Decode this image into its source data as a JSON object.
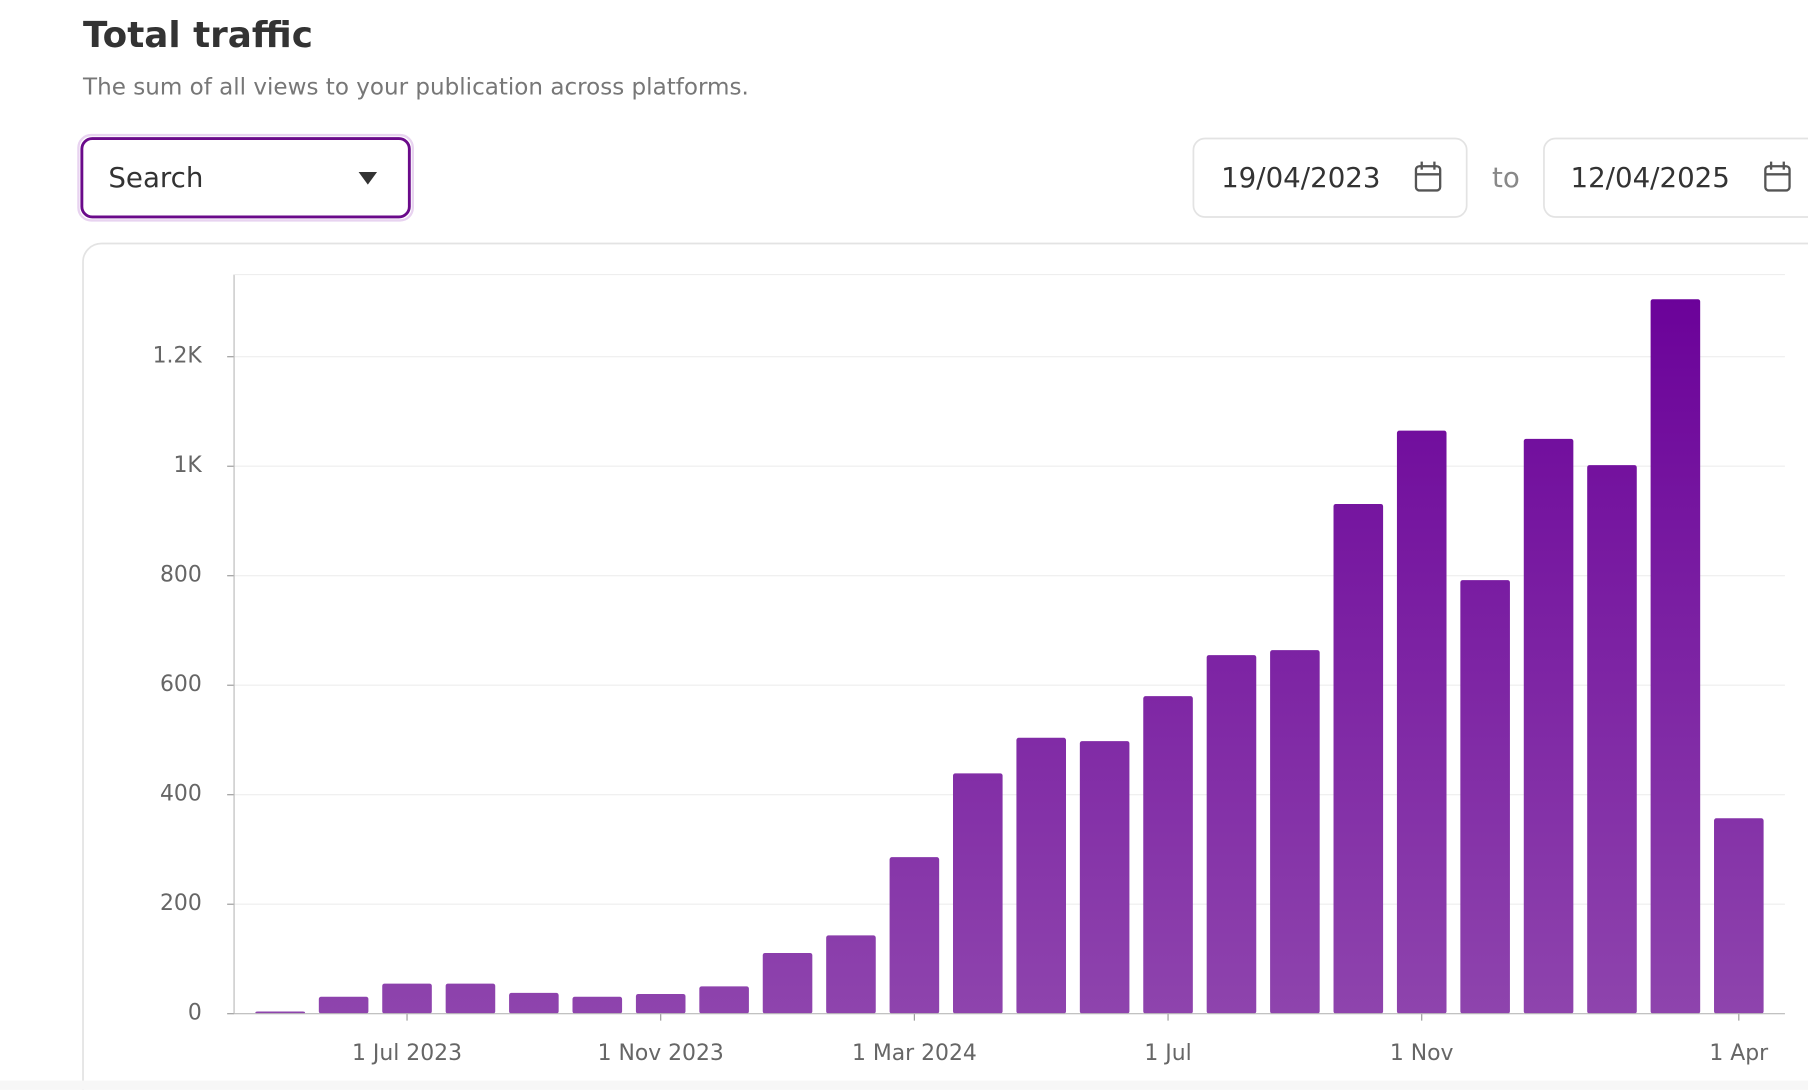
{
  "header": {
    "title": "Total traffic",
    "subtitle": "The sum of all views to your publication across platforms."
  },
  "controls": {
    "dropdown": "Search",
    "start_date": "19/04/2023",
    "separator": "to",
    "end_date": "12/04/2025"
  },
  "chart_data": {
    "type": "bar",
    "categories": [
      null,
      null,
      "1 Jul 2023",
      null,
      null,
      null,
      "1 Nov 2023",
      null,
      null,
      null,
      "1 Mar 2024",
      null,
      null,
      null,
      "1 Jul",
      null,
      null,
      null,
      "1 Nov",
      null,
      null,
      null,
      null,
      "1 Apr"
    ],
    "values": [
      4,
      31,
      55,
      55,
      38,
      31,
      36,
      50,
      111,
      143,
      286,
      439,
      504,
      498,
      580,
      655,
      664,
      931,
      1065,
      792,
      1050,
      1002,
      1305,
      357
    ],
    "gradient": [
      "#6a0099",
      "#8e44ad"
    ],
    "ylim": [
      0,
      1350
    ],
    "yticks": [
      0,
      200,
      400,
      600,
      800,
      {
        "value": 1000,
        "label": "1K"
      },
      {
        "value": 1200,
        "label": "1.2K"
      }
    ],
    "grid": true
  }
}
